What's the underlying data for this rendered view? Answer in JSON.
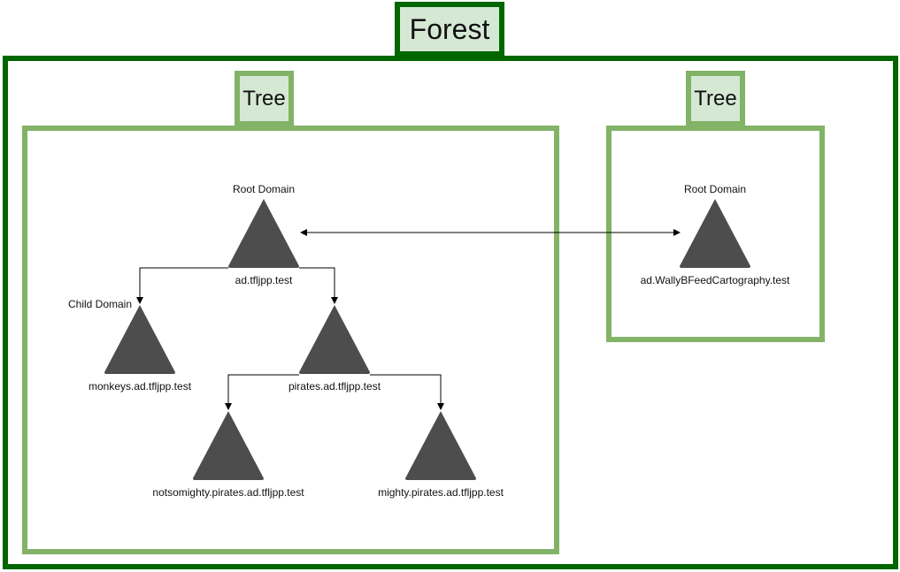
{
  "forest": {
    "label": "Forest"
  },
  "trees": [
    {
      "label": "Tree"
    },
    {
      "label": "Tree"
    }
  ],
  "domains": {
    "root1": {
      "caption": "Root Domain",
      "name": "ad.tfljpp.test"
    },
    "monkeys": {
      "caption": "Child Domain",
      "name": "monkeys.ad.tfljpp.test"
    },
    "pirates": {
      "name": "pirates.ad.tfljpp.test"
    },
    "notsomighty": {
      "name": "notsomighty.pirates.ad.tfljpp.test"
    },
    "mighty": {
      "name": "mighty.pirates.ad.tfljpp.test"
    },
    "root2": {
      "caption": "Root Domain",
      "name": "ad.WallyBFeedCartography.test"
    }
  },
  "colors": {
    "forest_border": "#006600",
    "tree_border": "#82b366",
    "tab_fill": "#d5e8d4",
    "triangle_fill": "#4d4d4d"
  }
}
